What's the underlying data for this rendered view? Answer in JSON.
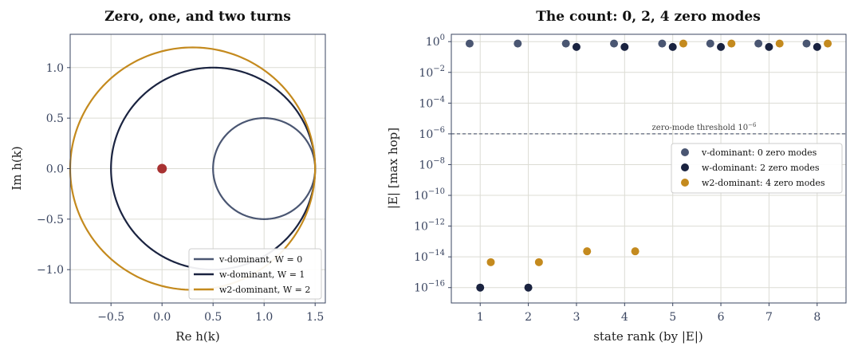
{
  "chart_data": [
    {
      "type": "line",
      "title": "Zero, one, and two turns",
      "xlabel": "Re h(k)",
      "ylabel": "Im h(k)",
      "xlim": [
        -0.9,
        1.6
      ],
      "ylim": [
        -1.33,
        1.33
      ],
      "xticks": [
        -0.5,
        0.0,
        0.5,
        1.0,
        1.5
      ],
      "yticks": [
        -1.0,
        -0.5,
        0.0,
        0.5,
        1.0
      ],
      "xtick_labels": [
        "−0.5",
        "0.0",
        "0.5",
        "1.0",
        "1.5"
      ],
      "ytick_labels": [
        "−1.0",
        "−0.5",
        "0.0",
        "0.5",
        "1.0"
      ],
      "grid": true,
      "legend_position": "lower-right",
      "origin_marker": {
        "x": 0,
        "y": 0,
        "color": "#a83232"
      },
      "series": [
        {
          "name": "v-dominant, W = 0",
          "color": "#4a5672",
          "curve": {
            "t0": 1.0,
            "t1": 0.5,
            "t2": 0.0
          },
          "winding": 0
        },
        {
          "name": "w-dominant, W = 1",
          "color": "#1a2340",
          "curve": {
            "t0": 0.5,
            "t1": 1.0,
            "t2": 0.0
          },
          "winding": 1
        },
        {
          "name": "w2-dominant, W = 2",
          "color": "#c48a1e",
          "curve": {
            "t0": 0.3,
            "t1": 0.0,
            "t2": 1.2
          },
          "winding": 2
        }
      ]
    },
    {
      "type": "scatter",
      "title": "The count: 0, 2, 4 zero modes",
      "xlabel": "state rank (by |E|)",
      "ylabel": "|E|  [max hop]",
      "yscale": "log",
      "xlim": [
        0.4,
        8.6
      ],
      "ylim": [
        1e-17,
        3
      ],
      "xticks": [
        1,
        2,
        3,
        4,
        5,
        6,
        7,
        8
      ],
      "yticks": [
        1.0,
        0.01,
        0.0001,
        1e-06,
        1e-08,
        1e-10,
        1e-12,
        1e-14,
        1e-16
      ],
      "xtick_labels": [
        "1",
        "2",
        "3",
        "4",
        "5",
        "6",
        "7",
        "8"
      ],
      "ytick_labels": [
        [
          "10",
          "0"
        ],
        [
          "10",
          "−2"
        ],
        [
          "10",
          "−4"
        ],
        [
          "10",
          "−6"
        ],
        [
          "10",
          "−8"
        ],
        [
          "10",
          "−10"
        ],
        [
          "10",
          "−12"
        ],
        [
          "10",
          "−14"
        ],
        [
          "10",
          "−16"
        ]
      ],
      "grid": true,
      "legend_position": "center-right",
      "threshold": {
        "value": 1e-06,
        "label": "zero-mode threshold 10",
        "label_exp": "−6"
      },
      "series": [
        {
          "name": "v-dominant: 0 zero modes",
          "color": "#4a5672",
          "x": [
            0.78,
            1.78,
            2.78,
            3.78,
            4.78,
            5.78,
            6.78,
            7.78
          ],
          "y": [
            0.75,
            0.75,
            0.75,
            0.75,
            0.75,
            0.75,
            0.75,
            0.75
          ]
        },
        {
          "name": "w-dominant: 2 zero modes",
          "color": "#1a2340",
          "x": [
            1.0,
            2.0,
            3.0,
            4.0,
            5.0,
            6.0,
            7.0,
            8.0
          ],
          "y": [
            1e-16,
            1e-16,
            0.45,
            0.45,
            0.45,
            0.45,
            0.45,
            0.45
          ]
        },
        {
          "name": "w2-dominant: 4 zero modes",
          "color": "#c48a1e",
          "x": [
            1.22,
            2.22,
            3.22,
            4.22,
            5.22,
            6.22,
            7.22,
            8.22
          ],
          "y": [
            4.5e-15,
            4.5e-15,
            2.3e-14,
            2.3e-14,
            0.75,
            0.75,
            0.75,
            0.75
          ]
        }
      ]
    }
  ]
}
